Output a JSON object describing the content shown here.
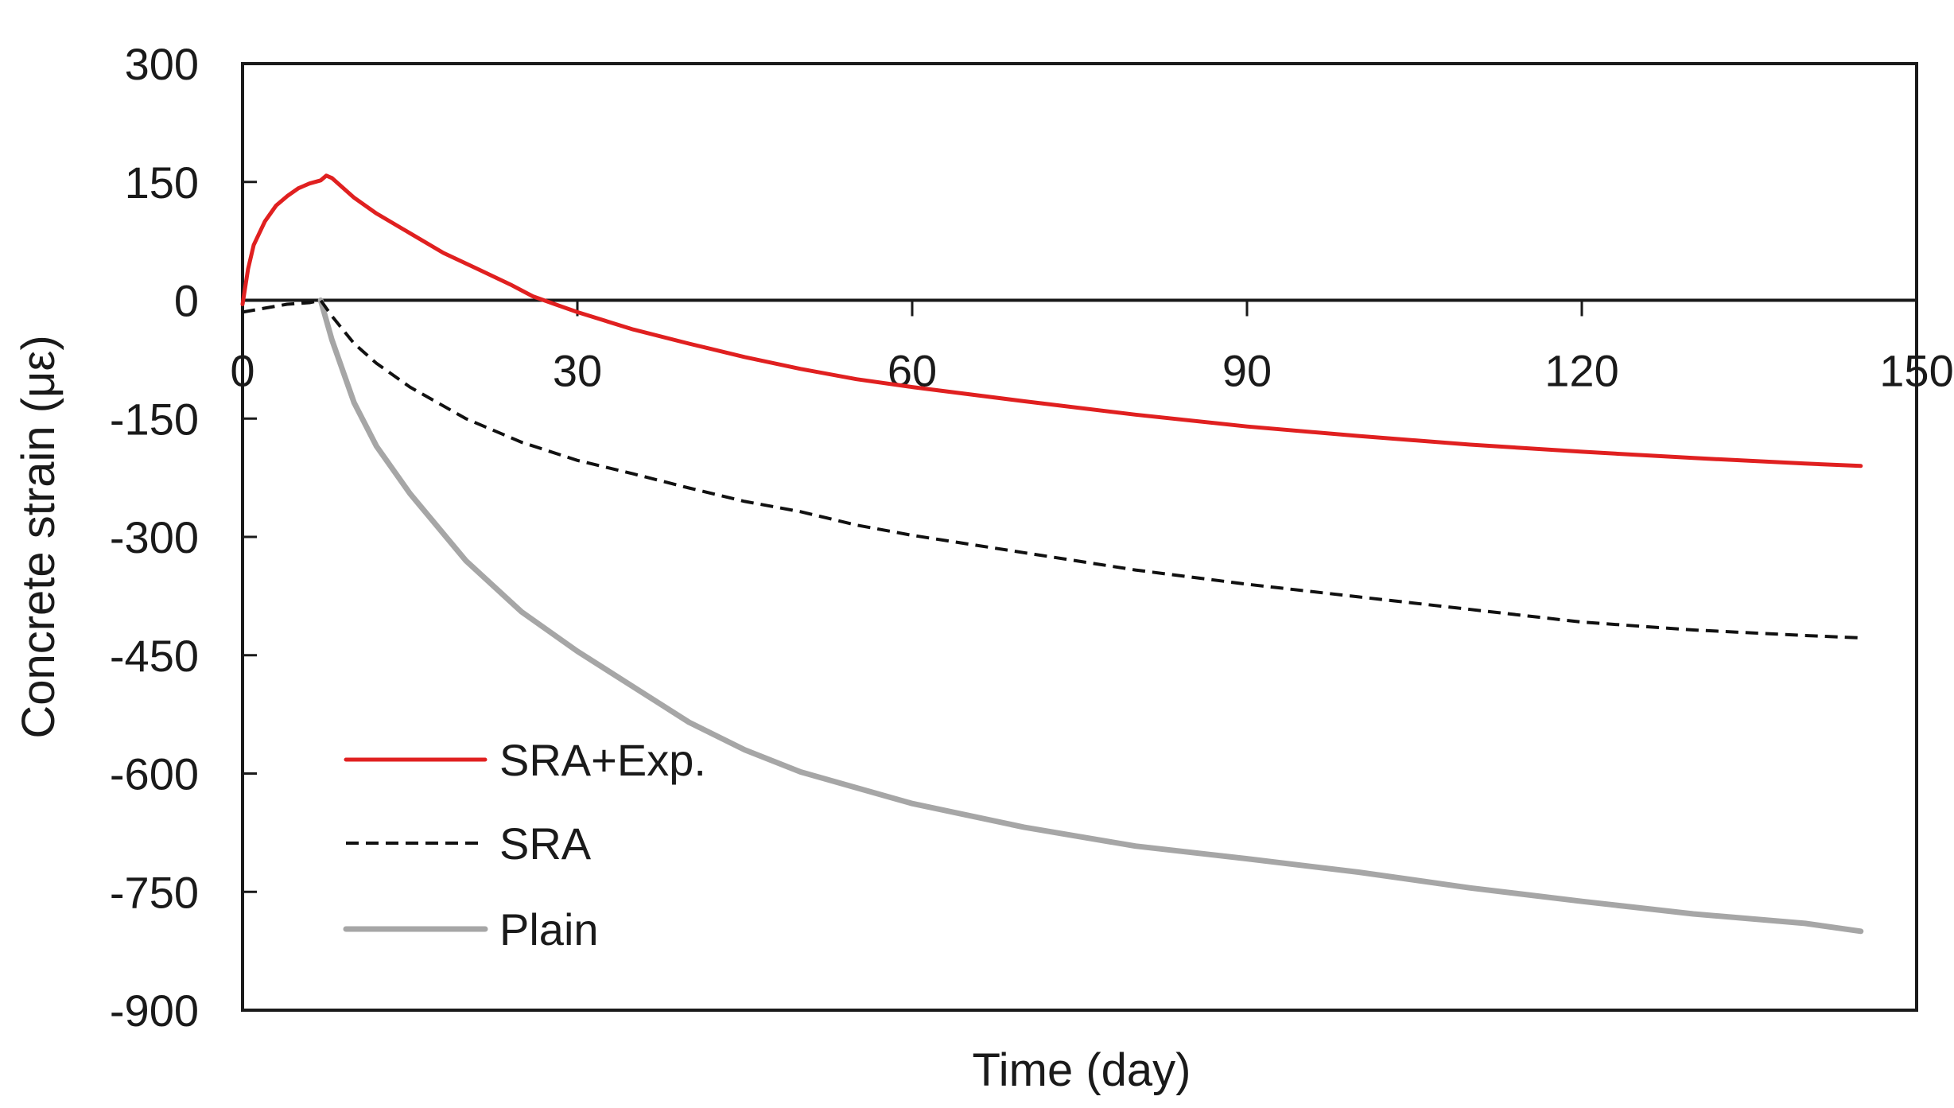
{
  "chart_data": {
    "type": "line",
    "title": "",
    "xlabel": "Time (day)",
    "ylabel": "Concrete strain (με)",
    "xlim": [
      0,
      150
    ],
    "ylim": [
      -900,
      300
    ],
    "xticks": [
      0,
      30,
      60,
      90,
      120,
      150
    ],
    "yticks": [
      300,
      150,
      0,
      -150,
      -300,
      -450,
      -600,
      -750,
      -900
    ],
    "grid": false,
    "legend_placement": "lower-left",
    "series": [
      {
        "name": "SRA+Exp.",
        "color": "#e02020",
        "style": "solid",
        "x": [
          0,
          0.5,
          1,
          2,
          3,
          4,
          5,
          6,
          7,
          7.5,
          8,
          10,
          12,
          15,
          18,
          21,
          24,
          26,
          28,
          30,
          35,
          40,
          45,
          50,
          55,
          60,
          70,
          80,
          90,
          100,
          110,
          120,
          130,
          140,
          145
        ],
        "y": [
          -5,
          40,
          70,
          100,
          120,
          132,
          142,
          148,
          152,
          158,
          155,
          130,
          110,
          85,
          60,
          40,
          20,
          5,
          -5,
          -15,
          -37,
          -55,
          -72,
          -87,
          -100,
          -110,
          -128,
          -145,
          -160,
          -172,
          -183,
          -192,
          -200,
          -207,
          -210
        ]
      },
      {
        "name": "SRA",
        "color": "#111111",
        "style": "dashed",
        "x": [
          0,
          2,
          4,
          6,
          7,
          8,
          10,
          12,
          15,
          20,
          25,
          30,
          35,
          40,
          45,
          50,
          55,
          60,
          70,
          80,
          90,
          100,
          110,
          120,
          130,
          140,
          145
        ],
        "y": [
          -15,
          -10,
          -5,
          -3,
          0,
          -20,
          -55,
          -80,
          -110,
          -150,
          -180,
          -203,
          -220,
          -238,
          -255,
          -268,
          -285,
          -298,
          -320,
          -342,
          -360,
          -376,
          -392,
          -408,
          -418,
          -425,
          -428
        ]
      },
      {
        "name": "Plain",
        "color": "#a6a6a6",
        "style": "solid",
        "x": [
          7,
          8,
          9,
          10,
          12,
          15,
          20,
          25,
          30,
          35,
          40,
          45,
          50,
          55,
          60,
          70,
          80,
          90,
          100,
          110,
          120,
          130,
          140,
          145
        ],
        "y": [
          0,
          -50,
          -90,
          -130,
          -185,
          -245,
          -330,
          -395,
          -445,
          -490,
          -535,
          -570,
          -598,
          -618,
          -638,
          -668,
          -692,
          -708,
          -725,
          -745,
          -762,
          -778,
          -790,
          -800
        ]
      }
    ]
  }
}
